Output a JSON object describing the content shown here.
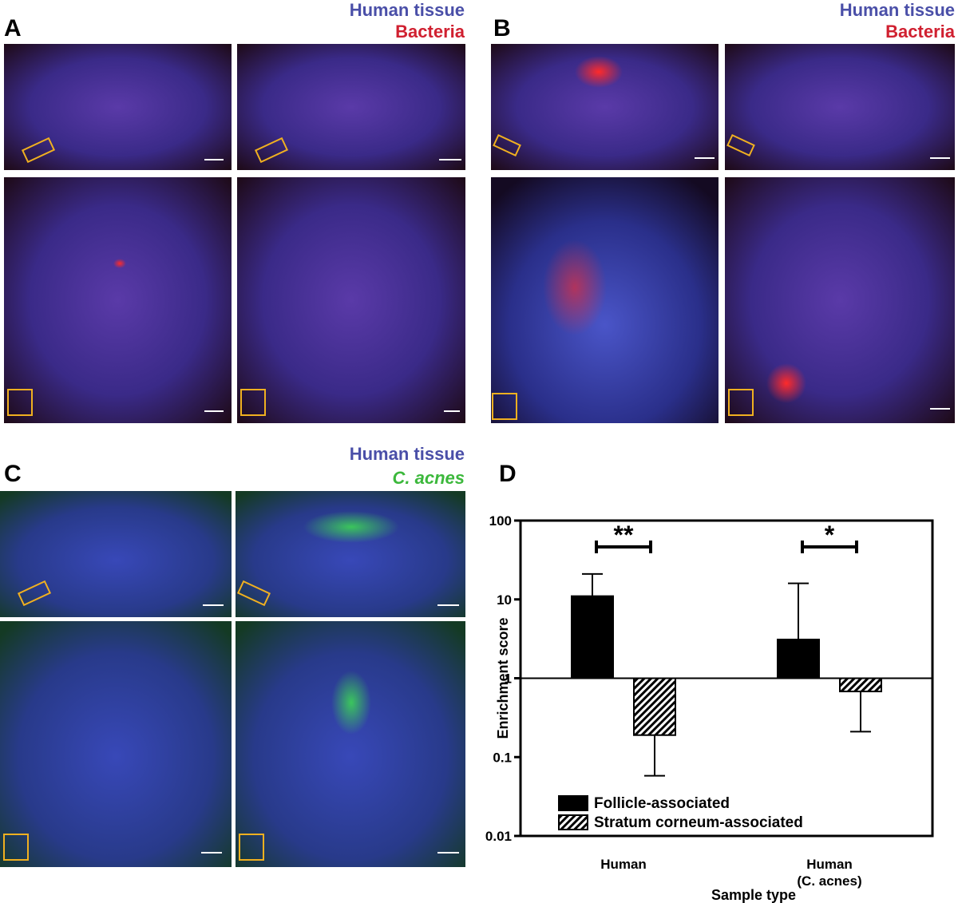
{
  "panels": [
    {
      "label": "A",
      "legend": [
        "Human tissue",
        "Bacteria"
      ]
    },
    {
      "label": "B",
      "legend": [
        "Human tissue",
        "Bacteria"
      ]
    },
    {
      "label": "C",
      "legend": [
        "Human tissue",
        "C. acnes"
      ]
    },
    {
      "label": "D"
    }
  ],
  "chart_data": {
    "type": "bar",
    "scale": "log",
    "categories": [
      "Human",
      "Human\n(C. acnes)"
    ],
    "series": [
      {
        "name": "Follicle-associated",
        "color": "#000000",
        "pattern": "solid",
        "values": [
          11,
          3.1
        ],
        "error_bar_ends": [
          21,
          16
        ]
      },
      {
        "name": "Stratum corneum-associated",
        "color": "#000000",
        "pattern": "hatch",
        "values": [
          0.19,
          0.68
        ],
        "error_bar_ends": [
          0.058,
          0.21
        ]
      }
    ],
    "annotations": [
      "**",
      "*"
    ],
    "ylim": [
      0.01,
      100
    ],
    "yticks": [
      0.01,
      0.1,
      1,
      10,
      100
    ],
    "ylabel": "Enrichment score",
    "xlabel": "Sample type",
    "legend_position": "bottom-left"
  }
}
